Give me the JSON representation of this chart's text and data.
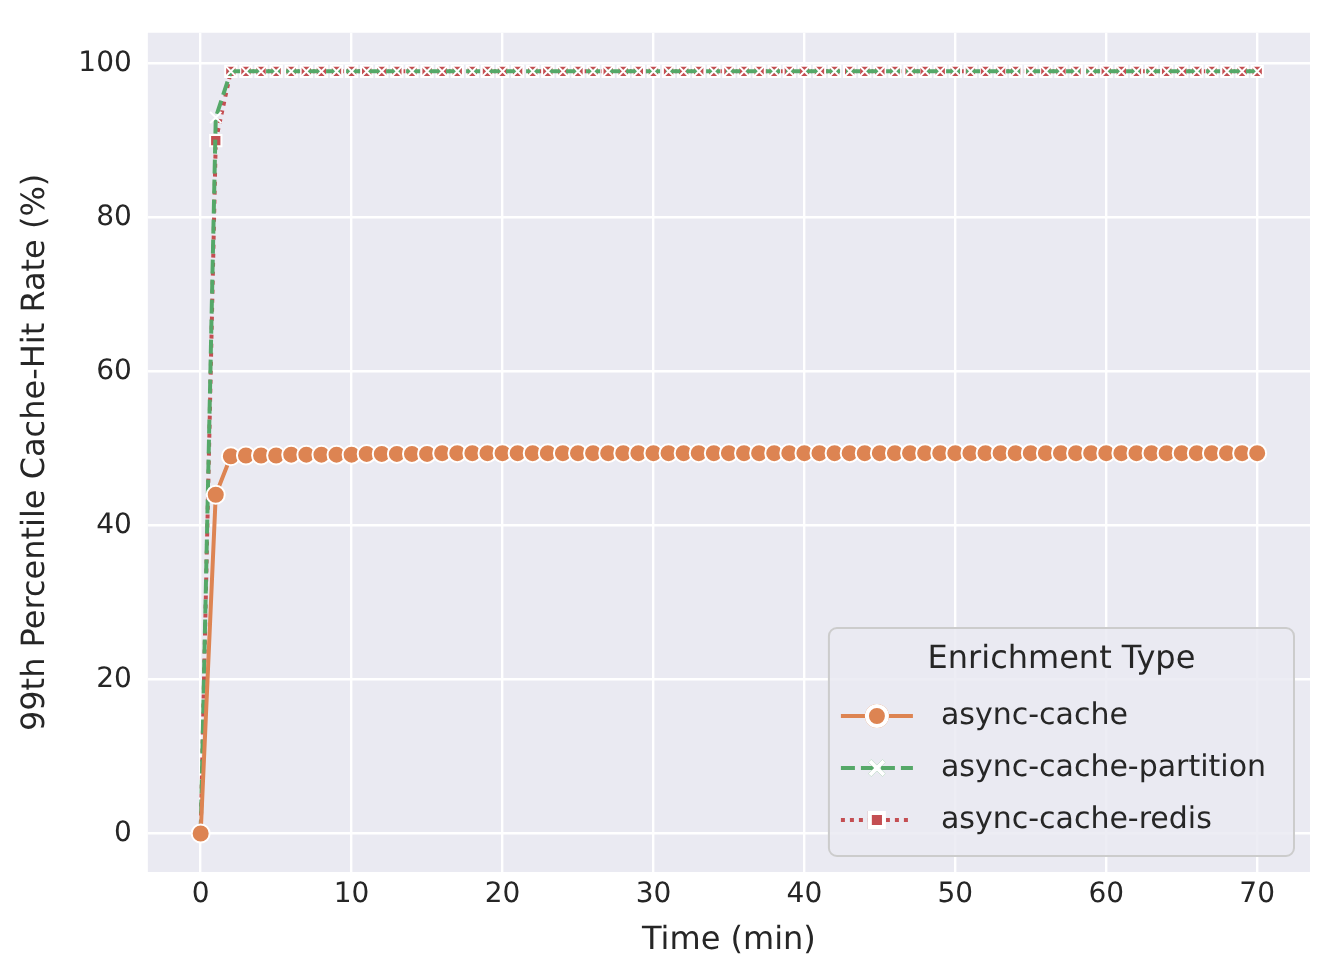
{
  "chart_data": {
    "type": "line",
    "xlabel": "Time (min)",
    "ylabel": "99th Percentile Cache-Hit Rate (%)",
    "legend_title": "Enrichment Type",
    "x": [
      0,
      1,
      2,
      3,
      4,
      5,
      6,
      7,
      8,
      9,
      10,
      11,
      12,
      13,
      14,
      15,
      16,
      17,
      18,
      19,
      20,
      21,
      22,
      23,
      24,
      25,
      26,
      27,
      28,
      29,
      30,
      31,
      32,
      33,
      34,
      35,
      36,
      37,
      38,
      39,
      40,
      41,
      42,
      43,
      44,
      45,
      46,
      47,
      48,
      49,
      50,
      51,
      52,
      53,
      54,
      55,
      56,
      57,
      58,
      59,
      60,
      61,
      62,
      63,
      64,
      65,
      66,
      67,
      68,
      69,
      70
    ],
    "series": [
      {
        "name": "async-cache",
        "color": "#dd8452",
        "marker": "circle",
        "line_style": "solid",
        "values": [
          0,
          44,
          49,
          49.1,
          49.1,
          49.1,
          49.2,
          49.2,
          49.2,
          49.2,
          49.2,
          49.3,
          49.3,
          49.3,
          49.3,
          49.3,
          49.4,
          49.4,
          49.4,
          49.4,
          49.4,
          49.4,
          49.4,
          49.4,
          49.4,
          49.4,
          49.4,
          49.4,
          49.4,
          49.4,
          49.4,
          49.4,
          49.4,
          49.4,
          49.4,
          49.4,
          49.4,
          49.4,
          49.4,
          49.4,
          49.4,
          49.4,
          49.4,
          49.4,
          49.4,
          49.4,
          49.4,
          49.4,
          49.4,
          49.4,
          49.4,
          49.4,
          49.4,
          49.4,
          49.4,
          49.4,
          49.4,
          49.4,
          49.4,
          49.4,
          49.4,
          49.4,
          49.4,
          49.4,
          49.4,
          49.4,
          49.4,
          49.4,
          49.4,
          49.4,
          49.4
        ]
      },
      {
        "name": "async-cache-partition",
        "color": "#55a868",
        "marker": "cross",
        "line_style": "dashed",
        "values": [
          0,
          93,
          99,
          99,
          99,
          99,
          99,
          99,
          99,
          99,
          99,
          99,
          99,
          99,
          99,
          99,
          99,
          99,
          99,
          99,
          99,
          99,
          99,
          99,
          99,
          99,
          99,
          99,
          99,
          99,
          99,
          99,
          99,
          99,
          99,
          99,
          99,
          99,
          99,
          99,
          99,
          99,
          99,
          99,
          99,
          99,
          99,
          99,
          99,
          99,
          99,
          99,
          99,
          99,
          99,
          99,
          99,
          99,
          99,
          99,
          99,
          99,
          99,
          99,
          99,
          99,
          99,
          99,
          99,
          99,
          99
        ]
      },
      {
        "name": "async-cache-redis",
        "color": "#c44e52",
        "marker": "square",
        "line_style": "dotted",
        "values": [
          0,
          90,
          99,
          99,
          99,
          99,
          99,
          99,
          99,
          99,
          99,
          99,
          99,
          99,
          99,
          99,
          99,
          99,
          99,
          99,
          99,
          99,
          99,
          99,
          99,
          99,
          99,
          99,
          99,
          99,
          99,
          99,
          99,
          99,
          99,
          99,
          99,
          99,
          99,
          99,
          99,
          99,
          99,
          99,
          99,
          99,
          99,
          99,
          99,
          99,
          99,
          99,
          99,
          99,
          99,
          99,
          99,
          99,
          99,
          99,
          99,
          99,
          99,
          99,
          99,
          99,
          99,
          99,
          99,
          99,
          99
        ]
      }
    ],
    "xlim": [
      -3.5,
      73.5
    ],
    "xticks": [
      0,
      10,
      20,
      30,
      40,
      50,
      60,
      70
    ],
    "ylim": [
      -5,
      104
    ],
    "yticks": [
      0,
      20,
      40,
      60,
      80,
      100
    ],
    "grid": true,
    "legend": "bottom right"
  }
}
